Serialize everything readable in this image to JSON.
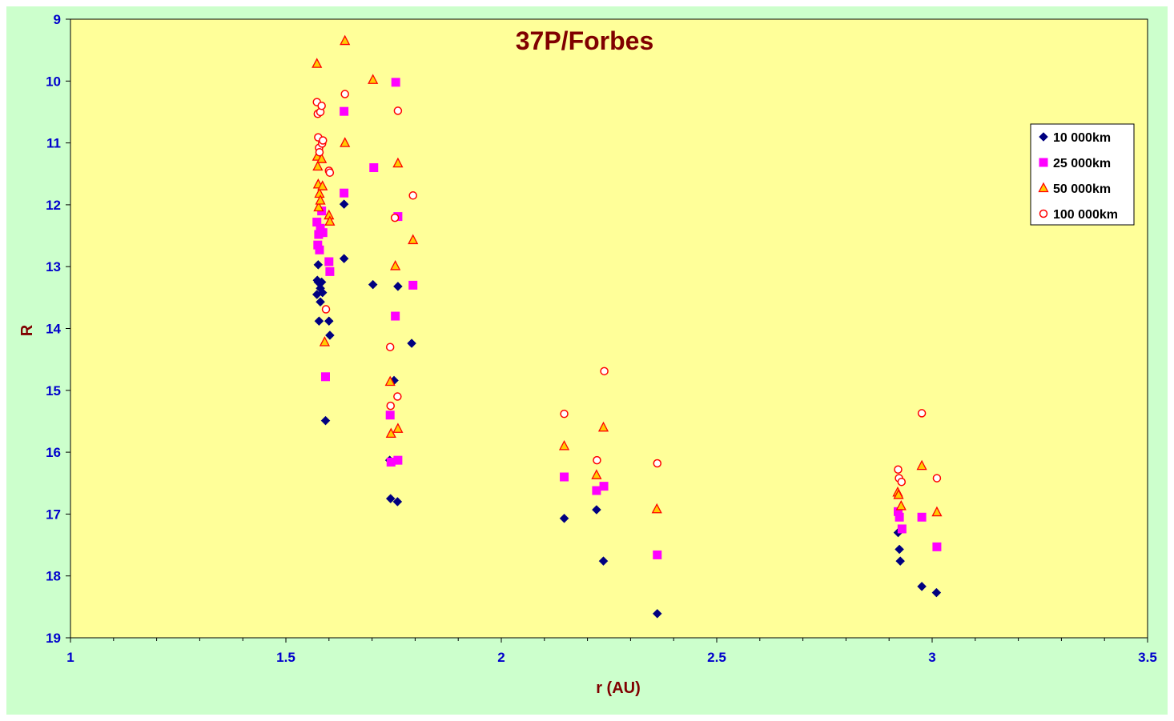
{
  "chart_data": {
    "type": "scatter",
    "title": "37P/Forbes",
    "xlabel": "r (AU)",
    "ylabel": "R",
    "xlim": [
      1,
      3.5
    ],
    "ylim": [
      9,
      19
    ],
    "y_reversed": true,
    "x_ticks": [
      "1",
      "1.5",
      "2",
      "2.5",
      "3",
      "3.5"
    ],
    "y_ticks": [
      "9",
      "10",
      "11",
      "12",
      "13",
      "14",
      "15",
      "16",
      "17",
      "18",
      "19"
    ],
    "grid": false,
    "legend_position": "right",
    "colors": {
      "plot_background": "#ffff99",
      "chart_background": "#ccffcc",
      "title": "#800000",
      "tick_labels": "#0000cc"
    },
    "series": [
      {
        "name": "10 000km",
        "marker": "diamond",
        "color": "#000080",
        "x": [
          1.572,
          1.573,
          1.575,
          1.577,
          1.58,
          1.583,
          1.585,
          1.592,
          1.6,
          1.602,
          1.635,
          1.635,
          1.702,
          1.741,
          1.743,
          1.751,
          1.759,
          1.76,
          1.792,
          2.146,
          2.221,
          2.237,
          2.362,
          2.921,
          2.924,
          2.926,
          2.976,
          3.01,
          1.575,
          1.58
        ],
        "y": [
          13.45,
          13.22,
          12.97,
          13.88,
          13.57,
          13.25,
          13.42,
          15.49,
          13.88,
          14.11,
          11.99,
          12.87,
          13.29,
          16.13,
          16.75,
          14.84,
          16.8,
          13.32,
          14.24,
          17.07,
          16.93,
          17.76,
          18.61,
          17.3,
          17.57,
          17.76,
          18.17,
          18.27,
          13.25,
          13.35
        ]
      },
      {
        "name": "25 000km",
        "marker": "square",
        "color": "#ff00ff",
        "x": [
          1.572,
          1.574,
          1.576,
          1.578,
          1.58,
          1.583,
          1.586,
          1.592,
          1.6,
          1.602,
          1.635,
          1.635,
          1.704,
          1.742,
          1.744,
          1.754,
          1.755,
          1.76,
          1.76,
          1.795,
          2.146,
          2.221,
          2.238,
          2.362,
          2.921,
          2.924,
          2.93,
          2.976,
          3.011
        ],
        "y": [
          12.28,
          12.65,
          12.48,
          12.73,
          12.38,
          12.1,
          12.45,
          14.78,
          12.92,
          13.08,
          10.49,
          11.81,
          11.4,
          15.4,
          16.16,
          13.8,
          10.02,
          12.19,
          16.13,
          13.3,
          16.4,
          16.62,
          16.55,
          17.66,
          16.96,
          17.05,
          17.24,
          17.05,
          17.53
        ]
      },
      {
        "name": "50 000km",
        "marker": "triangle",
        "color": "#ff0000",
        "fill": "#ffcc00",
        "x": [
          1.572,
          1.573,
          1.574,
          1.575,
          1.576,
          1.578,
          1.58,
          1.583,
          1.585,
          1.59,
          1.6,
          1.602,
          1.637,
          1.637,
          1.702,
          1.742,
          1.744,
          1.754,
          1.76,
          1.76,
          1.795,
          2.146,
          2.221,
          2.237,
          2.361,
          2.92,
          2.922,
          2.928,
          2.976,
          3.011
        ],
        "y": [
          9.72,
          11.22,
          11.38,
          11.67,
          12.04,
          11.82,
          11.93,
          11.26,
          11.7,
          14.22,
          12.17,
          12.27,
          9.35,
          11.0,
          9.98,
          14.86,
          15.7,
          12.99,
          11.33,
          15.62,
          12.57,
          15.9,
          16.37,
          15.6,
          16.92,
          16.65,
          16.69,
          16.87,
          16.22,
          16.97
        ]
      },
      {
        "name": "100 000km",
        "marker": "circle",
        "color": "#ff0000",
        "fill": "#ffffff",
        "x": [
          1.572,
          1.574,
          1.575,
          1.577,
          1.578,
          1.58,
          1.583,
          1.584,
          1.586,
          1.593,
          1.6,
          1.602,
          1.637,
          1.742,
          1.743,
          1.753,
          1.759,
          1.76,
          1.795,
          2.146,
          2.222,
          2.239,
          2.362,
          2.921,
          2.923,
          2.929,
          2.976,
          3.011
        ],
        "y": [
          10.34,
          10.53,
          10.91,
          11.08,
          11.15,
          10.5,
          10.4,
          11.01,
          10.96,
          13.69,
          11.45,
          11.48,
          10.21,
          14.3,
          15.25,
          12.21,
          15.1,
          10.48,
          11.85,
          15.38,
          16.13,
          14.69,
          16.18,
          16.28,
          16.42,
          16.48,
          15.37,
          16.42
        ]
      }
    ]
  }
}
